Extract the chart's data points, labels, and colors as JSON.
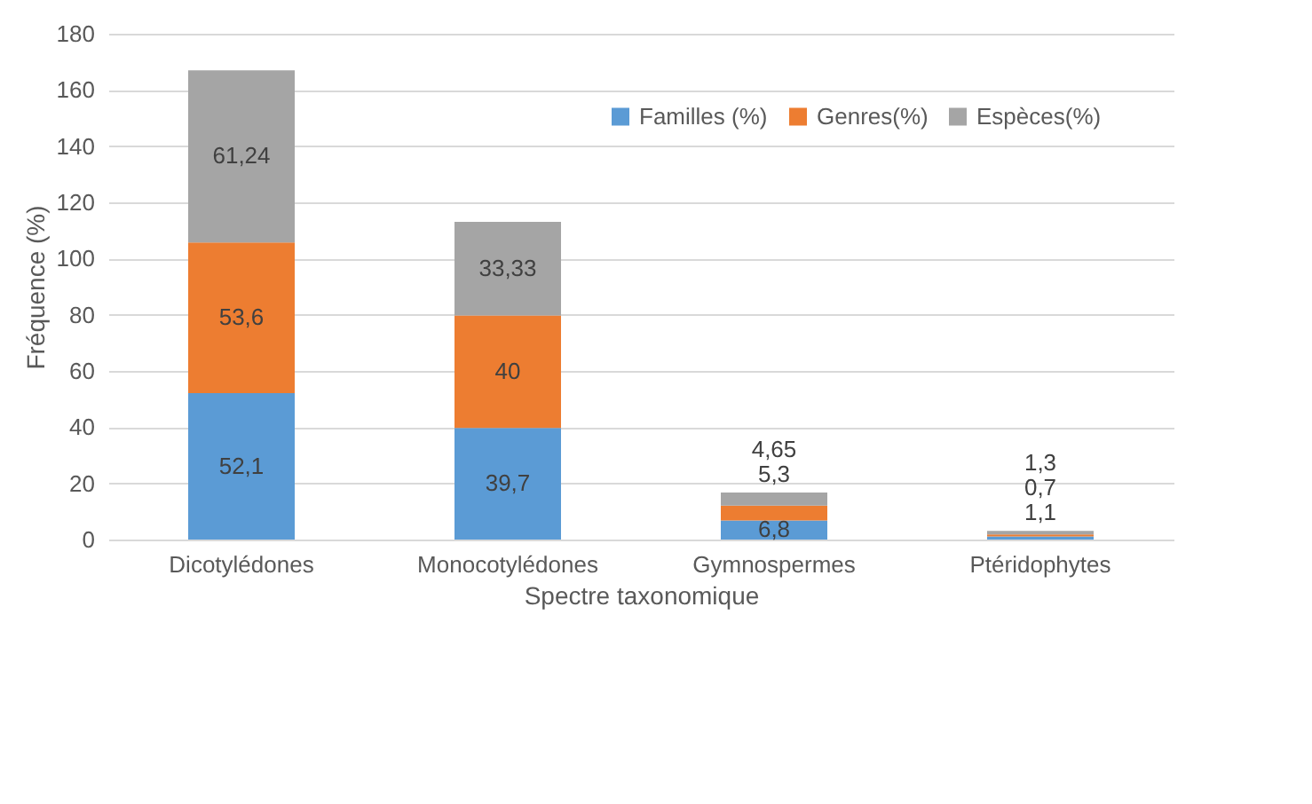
{
  "chart_data": {
    "type": "bar",
    "stacked": true,
    "xlabel": "Spectre taxonomique",
    "ylabel": "Fréquence (%)",
    "categories": [
      "Dicotylédones",
      "Monocotylédones",
      "Gymnospermes",
      "Ptéridophytes"
    ],
    "series": [
      {
        "name": "Familles (%)",
        "color": "#5b9bd5",
        "values": [
          52.1,
          39.7,
          6.8,
          1.1
        ],
        "value_labels": [
          "52,1",
          "39,7",
          "6,8",
          "1,1"
        ]
      },
      {
        "name": "Genres(%)",
        "color": "#ed7d31",
        "values": [
          53.6,
          40,
          5.3,
          0.7
        ],
        "value_labels": [
          "53,6",
          "40",
          "5,3",
          "0,7"
        ]
      },
      {
        "name": "Espèces(%)",
        "color": "#a5a5a5",
        "values": [
          61.24,
          33.33,
          4.65,
          1.3
        ],
        "value_labels": [
          "61,24",
          "33,33",
          "4,65",
          "1,3"
        ]
      }
    ],
    "ylim": [
      0,
      180
    ],
    "yticks": [
      0,
      20,
      40,
      60,
      80,
      100,
      120,
      140,
      160,
      180
    ],
    "grid": "y",
    "legend": "top right"
  }
}
